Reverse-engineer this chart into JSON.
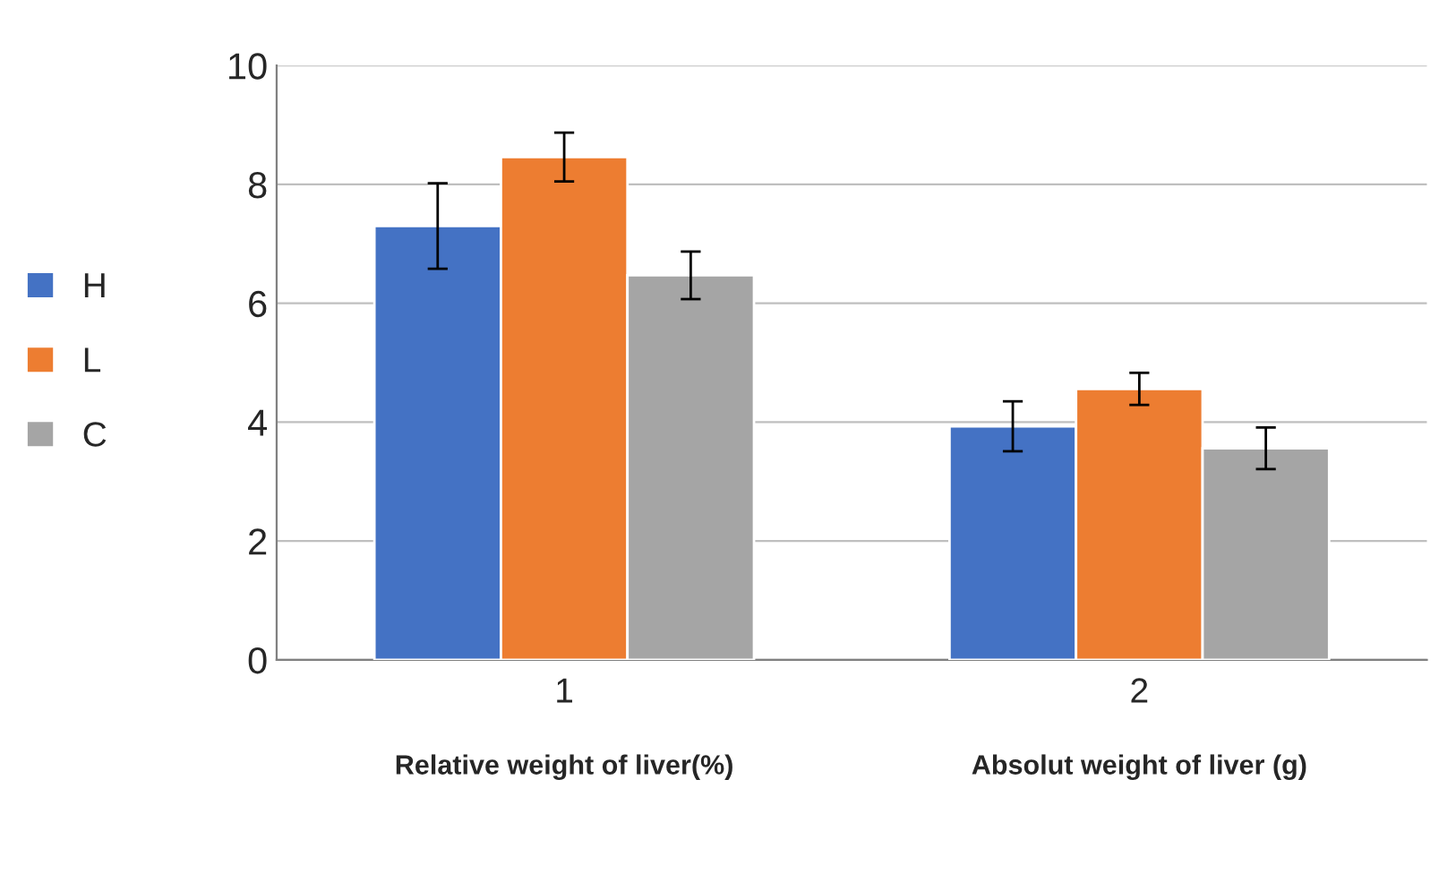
{
  "chart_data": {
    "type": "bar",
    "categories": [
      "1",
      "2"
    ],
    "series": [
      {
        "name": "H",
        "color": "#4472c4",
        "values": [
          7.3,
          3.93
        ],
        "errors": [
          0.72,
          0.42
        ]
      },
      {
        "name": "L",
        "color": "#ed7d31",
        "values": [
          8.46,
          4.56
        ],
        "errors": [
          0.41,
          0.27
        ]
      },
      {
        "name": "C",
        "color": "#a5a5a5",
        "values": [
          6.47,
          3.56
        ],
        "errors": [
          0.4,
          0.35
        ]
      }
    ],
    "ylim": [
      0,
      10
    ],
    "yticks": [
      0,
      2,
      4,
      6,
      8,
      10
    ],
    "grid": "y",
    "legend": "left",
    "annotations": [
      "Relative weight of liver(%)",
      "Absolut weight of liver (g)"
    ]
  }
}
